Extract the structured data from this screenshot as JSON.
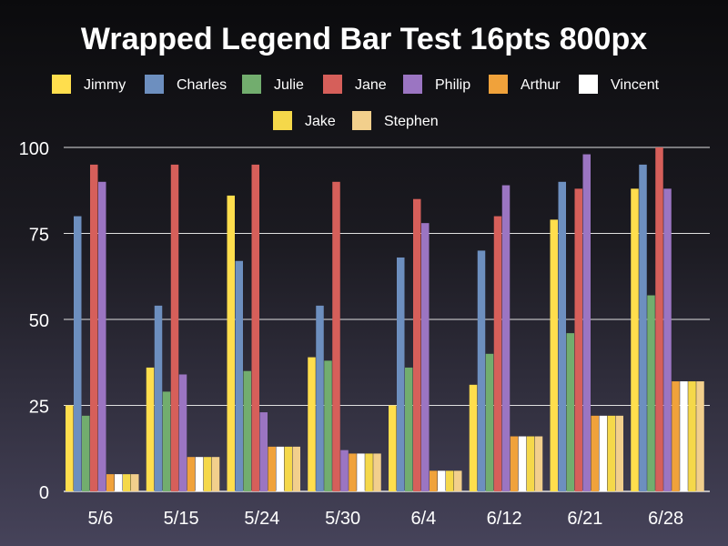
{
  "chart_data": {
    "type": "bar",
    "title": "Wrapped Legend Bar Test 16pts 800px",
    "xlabel": "",
    "ylabel": "",
    "ylim": [
      0,
      100
    ],
    "yticks": [
      0,
      25,
      50,
      75,
      100
    ],
    "grid": true,
    "legend_position": "top",
    "categories": [
      "5/6",
      "5/15",
      "5/24",
      "5/30",
      "6/4",
      "6/12",
      "6/21",
      "6/28"
    ],
    "series": [
      {
        "name": "Jimmy",
        "color": "#ffde4d",
        "values": [
          25,
          36,
          86,
          39,
          25,
          31,
          79,
          88
        ]
      },
      {
        "name": "Charles",
        "color": "#6d8fbf",
        "values": [
          80,
          54,
          67,
          54,
          68,
          70,
          90,
          95
        ]
      },
      {
        "name": "Julie",
        "color": "#72ad6e",
        "values": [
          22,
          29,
          35,
          38,
          36,
          40,
          46,
          57
        ]
      },
      {
        "name": "Jane",
        "color": "#d65f5a",
        "values": [
          95,
          95,
          95,
          90,
          85,
          80,
          88,
          100
        ]
      },
      {
        "name": "Philip",
        "color": "#9b75c2",
        "values": [
          90,
          34,
          23,
          12,
          78,
          89,
          98,
          88
        ]
      },
      {
        "name": "Arthur",
        "color": "#f0a23b",
        "values": [
          5,
          10,
          13,
          11,
          6,
          16,
          22,
          32
        ]
      },
      {
        "name": "Vincent",
        "color": "#ffffff",
        "values": [
          5,
          10,
          13,
          11,
          6,
          16,
          22,
          32
        ]
      },
      {
        "name": "Jake",
        "color": "#f5d84a",
        "values": [
          5,
          10,
          13,
          11,
          6,
          16,
          22,
          32
        ]
      },
      {
        "name": "Stephen",
        "color": "#f2cf8c",
        "values": [
          5,
          10,
          13,
          11,
          6,
          16,
          22,
          32
        ]
      }
    ]
  },
  "colors": {
    "grid": "#e0e0e0",
    "text": "#ffffff"
  }
}
